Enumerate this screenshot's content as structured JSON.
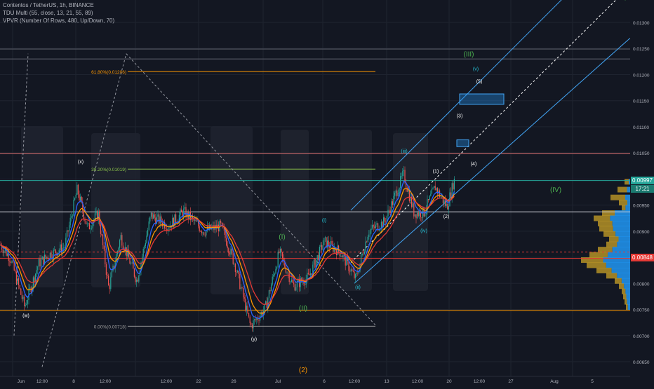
{
  "header": {
    "symbol_line": "Contentos / TetherUS, 1h, BINANCE",
    "indicator1": "TDU Multi (55, close, 13, 21, 55, 89)",
    "indicator2": "VPVR (Number Of Rows, 480, Up/Down, 70)"
  },
  "price_tags": {
    "last": "0.00997",
    "countdown": "17:21",
    "ma_level": "0.00848"
  },
  "colors": {
    "background": "#131722",
    "up": "#26a69a",
    "down": "#ef5350",
    "ema_fast": "#2962ff",
    "ema_mid": "#ff9800",
    "ema_slow": "#e53935",
    "channel": "#42a5f5",
    "fib": "#ff9800",
    "vp_up": "#2196f3",
    "vp_down": "#c9a227",
    "wave_primary": "#4caf50",
    "wave_minor": "#26c6da",
    "wave_sub": "#ffffff"
  },
  "chart_data": {
    "type": "candlestick",
    "symbol": "Contentos / TetherUS",
    "interval": "1h",
    "exchange": "BINANCE",
    "ylim": [
      0.0063,
      0.0137
    ],
    "y_ticks": [
      "0.01300",
      "0.01250",
      "0.01200",
      "0.01150",
      "0.01100",
      "0.01050",
      "0.01000",
      "0.00950",
      "0.00900",
      "0.00850",
      "0.00800",
      "0.00750",
      "0.00700",
      "0.00650"
    ],
    "x_ticks": [
      "Jun",
      "12:00",
      "8",
      "12:00",
      "12:00",
      "22",
      "26",
      "Jul",
      "6",
      "12:00",
      "13",
      "12:00",
      "20",
      "12:00",
      "27",
      "Aug",
      "5"
    ],
    "price_path": [
      [
        0,
        0.00875
      ],
      [
        15,
        0.00848
      ],
      [
        35,
        0.00755
      ],
      [
        55,
        0.00838
      ],
      [
        70,
        0.00855
      ],
      [
        92,
        0.0087
      ],
      [
        110,
        0.0098
      ],
      [
        125,
        0.00905
      ],
      [
        140,
        0.00935
      ],
      [
        155,
        0.0079
      ],
      [
        172,
        0.0089
      ],
      [
        195,
        0.00805
      ],
      [
        215,
        0.0093
      ],
      [
        240,
        0.0091
      ],
      [
        262,
        0.00938
      ],
      [
        290,
        0.009
      ],
      [
        315,
        0.0091
      ],
      [
        335,
        0.00835
      ],
      [
        357,
        0.00718
      ],
      [
        378,
        0.00752
      ],
      [
        398,
        0.0086
      ],
      [
        418,
        0.00795
      ],
      [
        440,
        0.00812
      ],
      [
        462,
        0.0088
      ],
      [
        485,
        0.0086
      ],
      [
        507,
        0.00808
      ],
      [
        525,
        0.009
      ],
      [
        548,
        0.00918
      ],
      [
        560,
        0.00958
      ],
      [
        575,
        0.0101
      ],
      [
        590,
        0.00935
      ],
      [
        604,
        0.00935
      ],
      [
        620,
        0.00985
      ],
      [
        637,
        0.00946
      ],
      [
        647,
        0.00997
      ]
    ],
    "ema_levels_note": "",
    "fib_levels": [
      {
        "label": "61.80%(0.01206)",
        "value": 0.01206
      },
      {
        "label": "38.20%(0.01019)",
        "value": 0.01019
      },
      {
        "label": "0.00%(0.00718)",
        "value": 0.00718
      }
    ],
    "horizontal_levels": [
      0.01249,
      0.0123,
      0.01049,
      0.00997,
      0.00937,
      0.0086,
      0.00848,
      0.00748
    ],
    "wave_labels": [
      {
        "text": "(w)",
        "x": 37,
        "y": 0.00735,
        "color": "wave_sub"
      },
      {
        "text": "(x)",
        "x": 115,
        "y": 0.0103,
        "color": "wave_sub"
      },
      {
        "text": "(y)",
        "x": 362,
        "y": 0.0069,
        "color": "wave_sub"
      },
      {
        "text": "(I)",
        "x": 402,
        "y": 0.00885,
        "color": "wave_primary"
      },
      {
        "text": "(II)",
        "x": 432,
        "y": 0.00748,
        "color": "wave_primary"
      },
      {
        "text": "(III)",
        "x": 668,
        "y": 0.01235,
        "color": "wave_primary"
      },
      {
        "text": "(IV)",
        "x": 792,
        "y": 0.00975,
        "color": "wave_primary"
      },
      {
        "text": "(V)",
        "x": 895,
        "y": 0.01345,
        "color": "wave_primary"
      },
      {
        "text": "(2)",
        "x": 432,
        "y": 0.0063,
        "color": "fib"
      },
      {
        "text": "(i)",
        "x": 462,
        "y": 0.00918,
        "color": "wave_minor"
      },
      {
        "text": "(ii)",
        "x": 510,
        "y": 0.0079,
        "color": "wave_minor"
      },
      {
        "text": "(iii)",
        "x": 576,
        "y": 0.0105,
        "color": "wave_minor"
      },
      {
        "text": "(iv)",
        "x": 604,
        "y": 0.00898,
        "color": "wave_minor"
      },
      {
        "text": "(v)",
        "x": 678,
        "y": 0.01208,
        "color": "wave_minor"
      },
      {
        "text": "(1)",
        "x": 621,
        "y": 0.01012,
        "color": "wave_sub"
      },
      {
        "text": "(2)",
        "x": 636,
        "y": 0.00925,
        "color": "wave_sub"
      },
      {
        "text": "(3)",
        "x": 655,
        "y": 0.01118,
        "color": "wave_sub"
      },
      {
        "text": "(4)",
        "x": 675,
        "y": 0.01026,
        "color": "wave_sub"
      },
      {
        "text": "(5)",
        "x": 683,
        "y": 0.01184,
        "color": "wave_sub"
      }
    ]
  }
}
